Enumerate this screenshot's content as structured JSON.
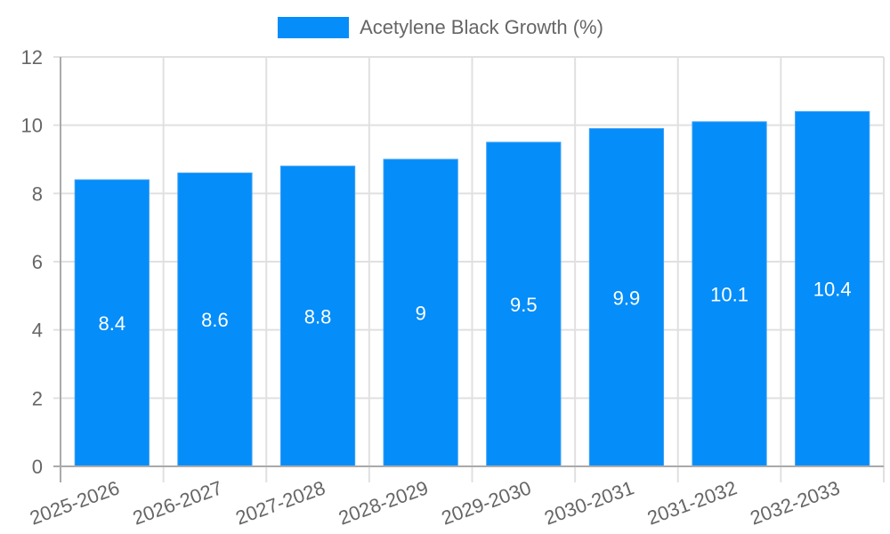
{
  "chart_data": {
    "type": "bar",
    "title": "",
    "xlabel": "",
    "ylabel": "",
    "categories": [
      "2025-2026",
      "2026-2027",
      "2027-2028",
      "2028-2029",
      "2029-2030",
      "2030-2031",
      "2031-2032",
      "2032-2033"
    ],
    "series": [
      {
        "name": "Acetylene Black Growth (%)",
        "values": [
          8.4,
          8.6,
          8.8,
          9,
          9.5,
          9.9,
          10.1,
          10.4
        ],
        "color": "#058DF9"
      }
    ],
    "data_labels": [
      "8.4",
      "8.6",
      "8.8",
      "9",
      "9.5",
      "9.9",
      "10.1",
      "10.4"
    ],
    "ylim": [
      0,
      12
    ],
    "yticks": [
      0,
      2,
      4,
      6,
      8,
      10,
      12
    ],
    "grid": true,
    "legend_position": "top",
    "xtick_rotation": -20
  },
  "legend": {
    "label": "Acetylene Black Growth (%)",
    "color": "#058DF9"
  }
}
